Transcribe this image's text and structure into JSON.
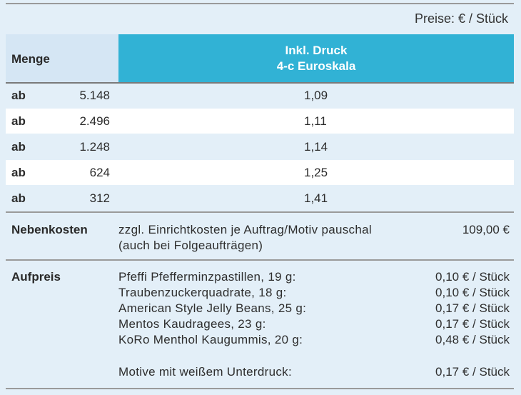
{
  "unit_note": "Preise: € / Stück",
  "header": {
    "quantity_label": "Menge",
    "print_line1": "Inkl. Druck",
    "print_line2": "4-c Euroskala"
  },
  "rows": [
    {
      "prefix": "ab",
      "quantity": "5.148",
      "price": "1,09"
    },
    {
      "prefix": "ab",
      "quantity": "2.496",
      "price": "1,11"
    },
    {
      "prefix": "ab",
      "quantity": "1.248",
      "price": "1,14"
    },
    {
      "prefix": "ab",
      "quantity": "624",
      "price": "1,25"
    },
    {
      "prefix": "ab",
      "quantity": "312",
      "price": "1,41"
    }
  ],
  "extra_costs": {
    "label": "Nebenkosten",
    "line1": "zzgl. Einrichtkosten je Auftrag/Motiv pauschal",
    "line2": "(auch bei Folgeaufträgen)",
    "value": "109,00 €"
  },
  "surcharge": {
    "label": "Aufpreis",
    "items": [
      {
        "name": "Pfeffi Pfefferminzpastillen, 19 g:",
        "price": "0,10 € / Stück"
      },
      {
        "name": "Traubenzuckerquadrate, 18 g:",
        "price": "0,10 € / Stück"
      },
      {
        "name": "American Style Jelly Beans, 25 g:",
        "price": "0,17 € / Stück"
      },
      {
        "name": "Mentos Kaudragees, 23 g:",
        "price": "0,17 € / Stück"
      },
      {
        "name": "KoRo Menthol Kaugummis, 20 g:",
        "price": "0,48 € / Stück"
      }
    ],
    "white_underprint": {
      "name": "Motive mit weißem Unterdruck:",
      "price": "0,17 € / Stück"
    }
  }
}
